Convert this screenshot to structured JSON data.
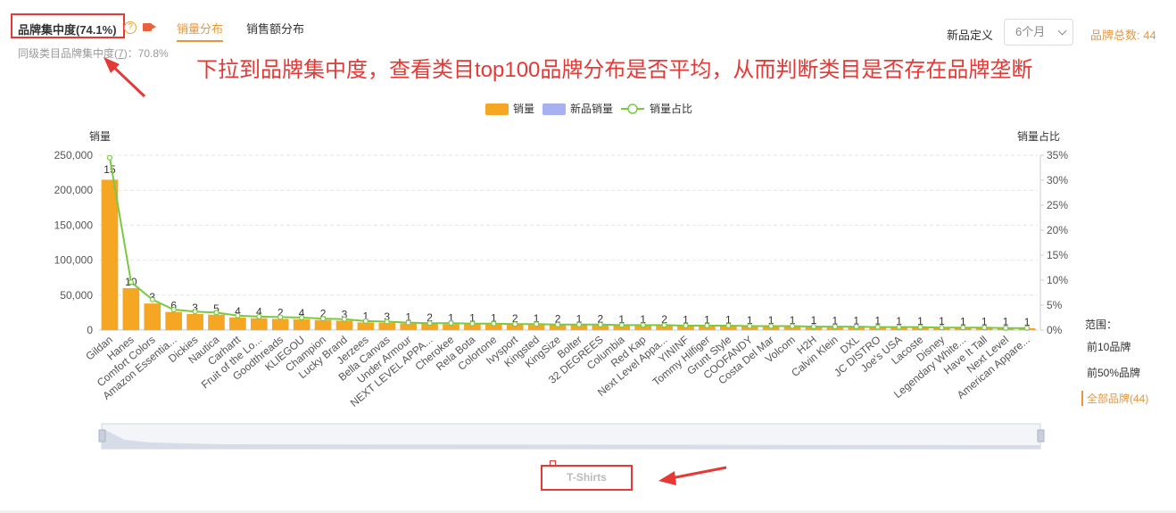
{
  "header": {
    "title": "品牌集中度(74.1%)",
    "help_glyph": "?",
    "tabs": [
      "销量分布",
      "销售额分布"
    ],
    "peer_label": "同级类目品牌集中度(",
    "peer_link": "7",
    "peer_value": ")：70.8%",
    "new_def_label": "新品定义",
    "period_value": "6个月",
    "brand_total": "品牌总数: 44"
  },
  "annotation_text": "下拉到品牌集中度，查看类目top100品牌分布是否平均，从而判断类目是否存在品牌垄断",
  "range": {
    "label": "范围：",
    "options": [
      "前10品牌",
      "前50%品牌",
      "全部品牌(44)"
    ]
  },
  "category_label": "T-Shirts",
  "colors": {
    "bar": "#f5a623",
    "new_bar": "#a7b1f0",
    "line": "#7ac943",
    "accent": "#e8963c",
    "annotation": "#e53935"
  },
  "chart_data": {
    "type": "bar",
    "title": "",
    "xlabel": "",
    "ylabel": "销量",
    "y2label": "销量占比",
    "ylim": [
      0,
      250000
    ],
    "y2lim": [
      0,
      35
    ],
    "yticks": [
      "0",
      "50,000",
      "100,000",
      "150,000",
      "200,000",
      "250,000"
    ],
    "y2ticks": [
      "0%",
      "5%",
      "10%",
      "15%",
      "20%",
      "25%",
      "30%",
      "35%"
    ],
    "grid": true,
    "legend_position": "top-center",
    "legend": [
      "销量",
      "新品销量",
      "销量占比"
    ],
    "categories": [
      "Gildan",
      "Hanes",
      "Comfort Colors",
      "Amazon Essentia...",
      "Dickies",
      "Nautica",
      "Carhartt",
      "Fruit of the Lo...",
      "Goodthreads",
      "KLIEGOU",
      "Champion",
      "Lucky Brand",
      "Jerzees",
      "Bella Canvas",
      "Under Armour",
      "NEXT LEVEL APPA...",
      "Cherokee",
      "Rela Bota",
      "Colortone",
      "Ivysport",
      "Kingsted",
      "KingSize",
      "Bolter",
      "32 DEGREES",
      "Columbia",
      "Red Kap",
      "Next Level Appa...",
      "YININF",
      "Tommy Hilfiger",
      "Grunt Style",
      "COOFANDY",
      "Costa Del Mar",
      "Volcom",
      "H2H",
      "Calvin Klein",
      "DXL",
      "JC DISTRO",
      "Joe's USA",
      "Lacoste",
      "Disney",
      "Legendary White...",
      "Have It Tall",
      "Next Level",
      "American Appare..."
    ],
    "series": [
      {
        "name": "销量",
        "values": [
          215000,
          60000,
          38000,
          26000,
          23000,
          22000,
          18000,
          17000,
          16000,
          15500,
          14500,
          13500,
          11000,
          10500,
          9500,
          9000,
          8500,
          8200,
          8000,
          7800,
          7500,
          7200,
          7000,
          6800,
          6600,
          6400,
          6200,
          6000,
          5800,
          5600,
          5400,
          5200,
          5000,
          4800,
          4600,
          4400,
          4200,
          4000,
          3800,
          3600,
          3400,
          3200,
          3000,
          2800
        ]
      },
      {
        "name": "新品销量",
        "values": [
          0,
          0,
          0,
          0,
          0,
          0,
          0,
          0,
          0,
          0,
          0,
          0,
          0,
          0,
          0,
          0,
          0,
          0,
          0,
          0,
          0,
          0,
          0,
          0,
          0,
          0,
          0,
          0,
          0,
          0,
          0,
          0,
          0,
          0,
          0,
          0,
          0,
          0,
          0,
          0,
          0,
          0,
          0,
          0
        ]
      },
      {
        "name": "销量占比",
        "values": [
          34.5,
          9.6,
          6.1,
          4.1,
          3.7,
          3.5,
          2.9,
          2.7,
          2.6,
          2.5,
          2.3,
          2.2,
          1.8,
          1.7,
          1.5,
          1.4,
          1.4,
          1.3,
          1.3,
          1.2,
          1.2,
          1.1,
          1.1,
          1.1,
          1.0,
          1.0,
          1.0,
          0.9,
          0.9,
          0.9,
          0.8,
          0.8,
          0.8,
          0.7,
          0.7,
          0.7,
          0.6,
          0.6,
          0.6,
          0.5,
          0.5,
          0.5,
          0.4,
          0.4
        ]
      }
    ],
    "bar_labels": [
      "15",
      "10",
      "3",
      "6",
      "3",
      "5",
      "4",
      "4",
      "2",
      "4",
      "2",
      "3",
      "1",
      "3",
      "1",
      "2",
      "1",
      "1",
      "1",
      "2",
      "1",
      "2",
      "1",
      "2",
      "1",
      "1",
      "2",
      "1",
      "1",
      "1",
      "1",
      "1",
      "1",
      "1",
      "1",
      "1",
      "1",
      "1",
      "1",
      "1",
      "1",
      "1",
      "1",
      "1"
    ]
  }
}
